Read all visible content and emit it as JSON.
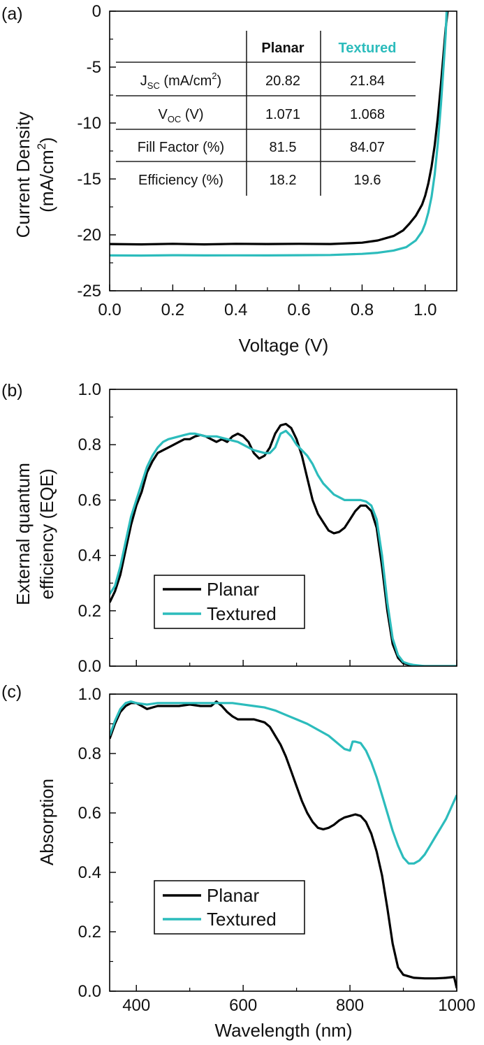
{
  "colors": {
    "planar": "#000000",
    "textured": "#2cbcbc",
    "axis": "#000000"
  },
  "chart_data": [
    {
      "panel": "(a)",
      "type": "line",
      "xlabel": "Voltage (V)",
      "ylabel_line1": "Current Density",
      "ylabel_line2": "(mA/cm",
      "ylabel_sup": "2",
      "ylabel_close": ")",
      "xlim": [
        0,
        1.1
      ],
      "ylim": [
        -25,
        0
      ],
      "xticks": [
        0.0,
        0.2,
        0.4,
        0.6,
        0.8,
        1.0
      ],
      "xtick_labels": [
        "0.0",
        "0.2",
        "0.4",
        "0.6",
        "0.8",
        "1.0"
      ],
      "yticks": [
        0,
        -5,
        -10,
        -15,
        -20,
        -25
      ],
      "ytick_labels": [
        "0",
        "-5",
        "-10",
        "-15",
        "-20",
        "-25"
      ],
      "series": [
        {
          "key": "planar",
          "x": [
            0.0,
            0.1,
            0.2,
            0.3,
            0.4,
            0.5,
            0.6,
            0.7,
            0.8,
            0.85,
            0.9,
            0.93,
            0.95,
            0.97,
            0.99,
            1.0,
            1.01,
            1.02,
            1.03,
            1.04,
            1.05,
            1.06,
            1.065,
            1.071
          ],
          "y": [
            -20.82,
            -20.85,
            -20.8,
            -20.85,
            -20.8,
            -20.82,
            -20.8,
            -20.82,
            -20.7,
            -20.5,
            -20.1,
            -19.6,
            -19.0,
            -18.3,
            -17.3,
            -16.5,
            -15.4,
            -13.9,
            -12.0,
            -9.5,
            -6.5,
            -3.2,
            -1.5,
            0.0
          ]
        },
        {
          "key": "textured",
          "x": [
            0.0,
            0.1,
            0.2,
            0.3,
            0.4,
            0.5,
            0.6,
            0.7,
            0.8,
            0.85,
            0.9,
            0.94,
            0.97,
            0.99,
            1.0,
            1.01,
            1.02,
            1.03,
            1.04,
            1.05,
            1.06,
            1.065,
            1.068
          ],
          "y": [
            -21.84,
            -21.85,
            -21.82,
            -21.84,
            -21.83,
            -21.84,
            -21.82,
            -21.8,
            -21.7,
            -21.6,
            -21.4,
            -21.1,
            -20.5,
            -19.7,
            -19.0,
            -18.0,
            -16.6,
            -14.6,
            -11.8,
            -8.3,
            -4.2,
            -2.0,
            0.0
          ]
        }
      ],
      "table": {
        "headers": [
          "",
          "Planar",
          "Textured"
        ],
        "rows": [
          {
            "label_main": "J",
            "label_sub": "SC",
            "label_rest": " (mA/cm",
            "label_sup": "2",
            "label_close": ")",
            "planar": "20.82",
            "textured": "21.84"
          },
          {
            "label_main": "V",
            "label_sub": "OC",
            "label_rest": " (V)",
            "label_sup": "",
            "label_close": "",
            "planar": "1.071",
            "textured": "1.068"
          },
          {
            "label_main": "Fill Factor (%)",
            "label_sub": "",
            "label_rest": "",
            "label_sup": "",
            "label_close": "",
            "planar": "81.5",
            "textured": "84.07"
          },
          {
            "label_main": "Efficiency (%)",
            "label_sub": "",
            "label_rest": "",
            "label_sup": "",
            "label_close": "",
            "planar": "18.2",
            "textured": "19.6"
          }
        ]
      }
    },
    {
      "panel": "(b)",
      "type": "line",
      "xlabel": "",
      "ylabel_line1": "External quantum",
      "ylabel_line2": "efficiency (EQE)",
      "xlim": [
        350,
        1000
      ],
      "ylim": [
        0,
        1.0
      ],
      "yticks": [
        0.0,
        0.2,
        0.4,
        0.6,
        0.8,
        1.0
      ],
      "ytick_labels": [
        "0.0",
        "0.2",
        "0.4",
        "0.6",
        "0.8",
        "1.0"
      ],
      "legend": {
        "position": "center-left",
        "entries": [
          "Planar",
          "Textured"
        ]
      },
      "series": [
        {
          "key": "planar",
          "name": "Planar",
          "x": [
            350,
            360,
            370,
            380,
            390,
            400,
            410,
            420,
            430,
            440,
            450,
            460,
            470,
            480,
            490,
            500,
            510,
            520,
            530,
            540,
            550,
            560,
            570,
            580,
            590,
            600,
            610,
            620,
            630,
            640,
            650,
            660,
            670,
            680,
            690,
            700,
            710,
            720,
            730,
            740,
            750,
            760,
            770,
            780,
            790,
            800,
            810,
            820,
            830,
            840,
            850,
            860,
            870,
            880,
            890,
            900,
            910,
            920,
            940,
            960,
            980,
            1000
          ],
          "y": [
            0.23,
            0.27,
            0.33,
            0.42,
            0.51,
            0.58,
            0.63,
            0.7,
            0.74,
            0.77,
            0.78,
            0.79,
            0.8,
            0.81,
            0.82,
            0.82,
            0.83,
            0.835,
            0.83,
            0.82,
            0.81,
            0.82,
            0.81,
            0.83,
            0.84,
            0.83,
            0.81,
            0.77,
            0.75,
            0.76,
            0.79,
            0.84,
            0.87,
            0.875,
            0.86,
            0.82,
            0.76,
            0.68,
            0.6,
            0.55,
            0.52,
            0.49,
            0.48,
            0.485,
            0.5,
            0.53,
            0.56,
            0.58,
            0.58,
            0.56,
            0.5,
            0.36,
            0.2,
            0.08,
            0.03,
            0.01,
            0.005,
            0.0,
            0.0,
            0.0,
            0.0,
            0.0
          ]
        },
        {
          "key": "textured",
          "name": "Textured",
          "x": [
            350,
            360,
            370,
            380,
            390,
            400,
            410,
            420,
            430,
            440,
            450,
            460,
            470,
            480,
            490,
            500,
            510,
            520,
            530,
            540,
            550,
            560,
            570,
            580,
            590,
            600,
            610,
            620,
            630,
            640,
            650,
            660,
            670,
            680,
            690,
            700,
            710,
            720,
            730,
            740,
            750,
            760,
            770,
            780,
            790,
            800,
            810,
            820,
            830,
            840,
            850,
            860,
            870,
            880,
            890,
            900,
            910,
            920,
            940,
            960,
            980,
            1000
          ],
          "y": [
            0.26,
            0.29,
            0.36,
            0.45,
            0.54,
            0.6,
            0.66,
            0.72,
            0.76,
            0.79,
            0.81,
            0.82,
            0.825,
            0.83,
            0.835,
            0.84,
            0.84,
            0.835,
            0.83,
            0.83,
            0.83,
            0.825,
            0.82,
            0.815,
            0.81,
            0.8,
            0.79,
            0.78,
            0.775,
            0.77,
            0.77,
            0.79,
            0.84,
            0.85,
            0.83,
            0.8,
            0.78,
            0.76,
            0.73,
            0.69,
            0.66,
            0.64,
            0.62,
            0.61,
            0.6,
            0.6,
            0.6,
            0.6,
            0.595,
            0.58,
            0.53,
            0.4,
            0.23,
            0.1,
            0.04,
            0.015,
            0.008,
            0.004,
            0.0,
            0.0,
            0.0,
            0.0
          ]
        }
      ]
    },
    {
      "panel": "(c)",
      "type": "line",
      "xlabel": "Wavelength (nm)",
      "ylabel_line1": "Absorption",
      "xlim": [
        350,
        1000
      ],
      "ylim": [
        0,
        1.0
      ],
      "xticks": [
        400,
        600,
        800,
        1000
      ],
      "xtick_labels": [
        "400",
        "600",
        "800",
        "1000"
      ],
      "yticks": [
        0.0,
        0.2,
        0.4,
        0.6,
        0.8,
        1.0
      ],
      "ytick_labels": [
        "0.0",
        "0.2",
        "0.4",
        "0.6",
        "0.8",
        "1.0"
      ],
      "legend": {
        "position": "bottom-left",
        "entries": [
          "Planar",
          "Textured"
        ]
      },
      "series": [
        {
          "key": "planar",
          "name": "Planar",
          "x": [
            350,
            360,
            370,
            380,
            390,
            400,
            410,
            420,
            440,
            460,
            480,
            500,
            520,
            540,
            550,
            560,
            570,
            580,
            590,
            600,
            620,
            640,
            650,
            660,
            670,
            680,
            690,
            700,
            710,
            720,
            730,
            740,
            750,
            760,
            770,
            780,
            790,
            800,
            810,
            820,
            830,
            840,
            850,
            860,
            870,
            880,
            890,
            900,
            920,
            940,
            960,
            980,
            995,
            1000
          ],
          "y": [
            0.85,
            0.9,
            0.94,
            0.96,
            0.97,
            0.97,
            0.96,
            0.95,
            0.96,
            0.96,
            0.96,
            0.965,
            0.96,
            0.96,
            0.975,
            0.96,
            0.94,
            0.925,
            0.915,
            0.915,
            0.915,
            0.905,
            0.89,
            0.86,
            0.83,
            0.79,
            0.74,
            0.69,
            0.64,
            0.6,
            0.57,
            0.55,
            0.545,
            0.55,
            0.56,
            0.575,
            0.585,
            0.59,
            0.595,
            0.59,
            0.57,
            0.53,
            0.47,
            0.39,
            0.28,
            0.16,
            0.08,
            0.055,
            0.045,
            0.043,
            0.043,
            0.045,
            0.048,
            0.01
          ]
        },
        {
          "key": "textured",
          "name": "Textured",
          "x": [
            350,
            360,
            370,
            380,
            390,
            400,
            420,
            440,
            460,
            480,
            500,
            520,
            540,
            560,
            580,
            600,
            620,
            640,
            660,
            680,
            700,
            720,
            740,
            760,
            770,
            780,
            790,
            800,
            805,
            810,
            820,
            830,
            840,
            850,
            860,
            870,
            880,
            890,
            900,
            910,
            920,
            930,
            940,
            950,
            960,
            970,
            980,
            990,
            1000
          ],
          "y": [
            0.86,
            0.91,
            0.95,
            0.97,
            0.975,
            0.97,
            0.965,
            0.97,
            0.97,
            0.97,
            0.97,
            0.97,
            0.97,
            0.97,
            0.97,
            0.965,
            0.96,
            0.955,
            0.945,
            0.93,
            0.915,
            0.9,
            0.88,
            0.86,
            0.845,
            0.83,
            0.815,
            0.81,
            0.84,
            0.84,
            0.835,
            0.81,
            0.77,
            0.72,
            0.66,
            0.6,
            0.54,
            0.49,
            0.45,
            0.43,
            0.43,
            0.44,
            0.46,
            0.49,
            0.52,
            0.55,
            0.58,
            0.62,
            0.66
          ]
        }
      ]
    }
  ]
}
